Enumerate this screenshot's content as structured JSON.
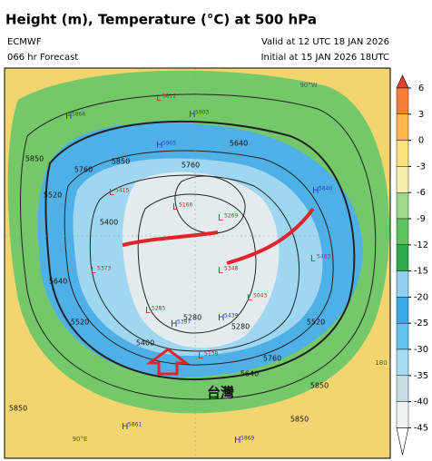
{
  "header": {
    "title": "Height (m), Temperature (°C) at 500 hPa",
    "model": "ECMWF",
    "forecast": "066 hr Forecast",
    "valid": "Valid at 12 UTC 18 JAN 2026",
    "initial": "Initial at 15 JAN 2026 18UTC"
  },
  "colorbar": {
    "ticks": [
      6,
      3,
      0,
      -3,
      -6,
      -9,
      -12,
      -15,
      -20,
      -25,
      -30,
      -35,
      -40,
      -45
    ],
    "colors": [
      "#e0452b",
      "#f57f3a",
      "#fbb54a",
      "#fce27a",
      "#f3efaa",
      "#9fd88a",
      "#5cc35f",
      "#2ea84a",
      "#8fd0f0",
      "#3aa7e6",
      "#62c3ee",
      "#a5dcf2",
      "#c8dde3",
      "#eef2f4",
      "#ffffff"
    ]
  },
  "map": {
    "labels": [
      {
        "mark": "H",
        "value": "5866"
      },
      {
        "mark": "L",
        "value": "5812"
      },
      {
        "mark": "H",
        "value": "5903"
      },
      {
        "mark": "H",
        "value": "5905"
      },
      {
        "mark": "L",
        "value": "5415"
      },
      {
        "mark": "L",
        "value": "5373"
      },
      {
        "mark": "L",
        "value": "5166"
      },
      {
        "mark": "L",
        "value": "5269"
      },
      {
        "mark": "L",
        "value": "5348"
      },
      {
        "mark": "H",
        "value": "5840"
      },
      {
        "mark": "L",
        "value": "5483"
      },
      {
        "mark": "L",
        "value": "5043"
      },
      {
        "mark": "H",
        "value": "5397"
      },
      {
        "mark": "H",
        "value": "5439"
      },
      {
        "mark": "L",
        "value": "5285"
      },
      {
        "mark": "L",
        "value": "5138"
      },
      {
        "mark": "H",
        "value": "5861"
      },
      {
        "mark": "H",
        "value": "5869"
      }
    ],
    "contours": [
      "5850",
      "5760",
      "5640",
      "5520",
      "5400",
      "5280",
      "5760",
      "5640",
      "5850",
      "5520",
      "5400",
      "5280",
      "5760",
      "5640",
      "5520",
      "5850",
      "5850",
      "5850"
    ],
    "place": "台灣",
    "coords": [
      "90°E",
      "180",
      "90°W"
    ]
  }
}
